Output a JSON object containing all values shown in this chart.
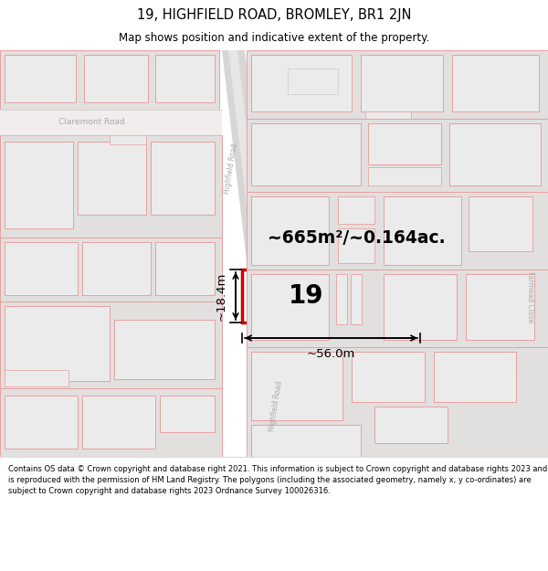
{
  "title": "19, HIGHFIELD ROAD, BROMLEY, BR1 2JN",
  "subtitle": "Map shows position and indicative extent of the property.",
  "footnote": "Contains OS data © Crown copyright and database right 2021. This information is subject to Crown copyright and database rights 2023 and is reproduced with the permission of HM Land Registry. The polygons (including the associated geometry, namely x, y co-ordinates) are subject to Crown copyright and database rights 2023 Ordnance Survey 100026316.",
  "map_bg": "#f7f5f5",
  "building_fill": "#e2dfdf",
  "building_edge": "#e8a0a0",
  "building_inner_fill": "#ebebeb",
  "road_fill": "#d8d5d5",
  "highlight_edge": "#cc0000",
  "highlight_fill": "#ffffff",
  "area_text": "~665m²/~0.164ac.",
  "number_text": "19",
  "dim_width": "~56.0m",
  "dim_height": "~18.4m",
  "road_name_upper": "Highfield Road",
  "road_name_lower": "Highfield Road",
  "road_name_right": "Farmead Close",
  "street_name_claremont": "Claremont Road"
}
